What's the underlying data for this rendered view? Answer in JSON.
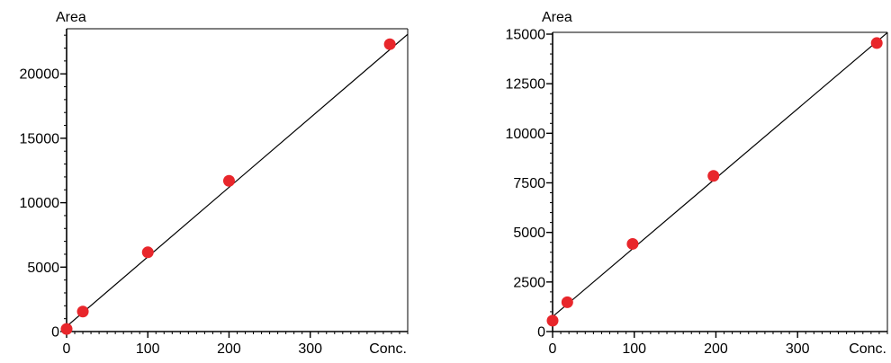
{
  "chart_data": [
    {
      "type": "scatter",
      "ylabel": "Area",
      "xlabel": "Conc.",
      "xlim": [
        0,
        420
      ],
      "ylim": [
        0,
        23500
      ],
      "x_ticks": [
        "0",
        "100",
        "200",
        "300"
      ],
      "y_ticks": [
        "0",
        "5000",
        "10000",
        "15000",
        "20000"
      ],
      "x_tick_values": [
        0,
        100,
        200,
        300
      ],
      "y_tick_values": [
        0,
        5000,
        10000,
        15000,
        20000
      ],
      "x_minor_step": 10,
      "y_minor_step": 1000,
      "points": [
        {
          "x": 0,
          "y": 200
        },
        {
          "x": 20,
          "y": 1550
        },
        {
          "x": 100,
          "y": 6150
        },
        {
          "x": 200,
          "y": 11700
        },
        {
          "x": 398,
          "y": 22300
        }
      ],
      "fit_line": {
        "x": [
          0,
          428
        ],
        "y": [
          400,
          23500
        ]
      },
      "point_color": "#e8262b",
      "grid": false
    },
    {
      "type": "scatter",
      "ylabel": "Area",
      "xlabel": "Conc.",
      "xlim": [
        0,
        410
      ],
      "ylim": [
        0,
        15000
      ],
      "x_ticks": [
        "0",
        "100",
        "200",
        "300"
      ],
      "y_ticks": [
        "0",
        "2500",
        "5000",
        "7500",
        "10000",
        "12500",
        "15000"
      ],
      "x_tick_values": [
        0,
        100,
        200,
        300
      ],
      "y_tick_values": [
        0,
        2500,
        5000,
        7500,
        10000,
        12500,
        15000
      ],
      "x_minor_step": 10,
      "y_minor_step": 500,
      "points": [
        {
          "x": 0,
          "y": 550
        },
        {
          "x": 18,
          "y": 1480
        },
        {
          "x": 98,
          "y": 4420
        },
        {
          "x": 197,
          "y": 7850
        },
        {
          "x": 397,
          "y": 14550
        }
      ],
      "fit_line": {
        "x": [
          0,
          415
        ],
        "y": [
          750,
          15250
        ]
      },
      "point_color": "#e8262b",
      "grid": false
    }
  ]
}
